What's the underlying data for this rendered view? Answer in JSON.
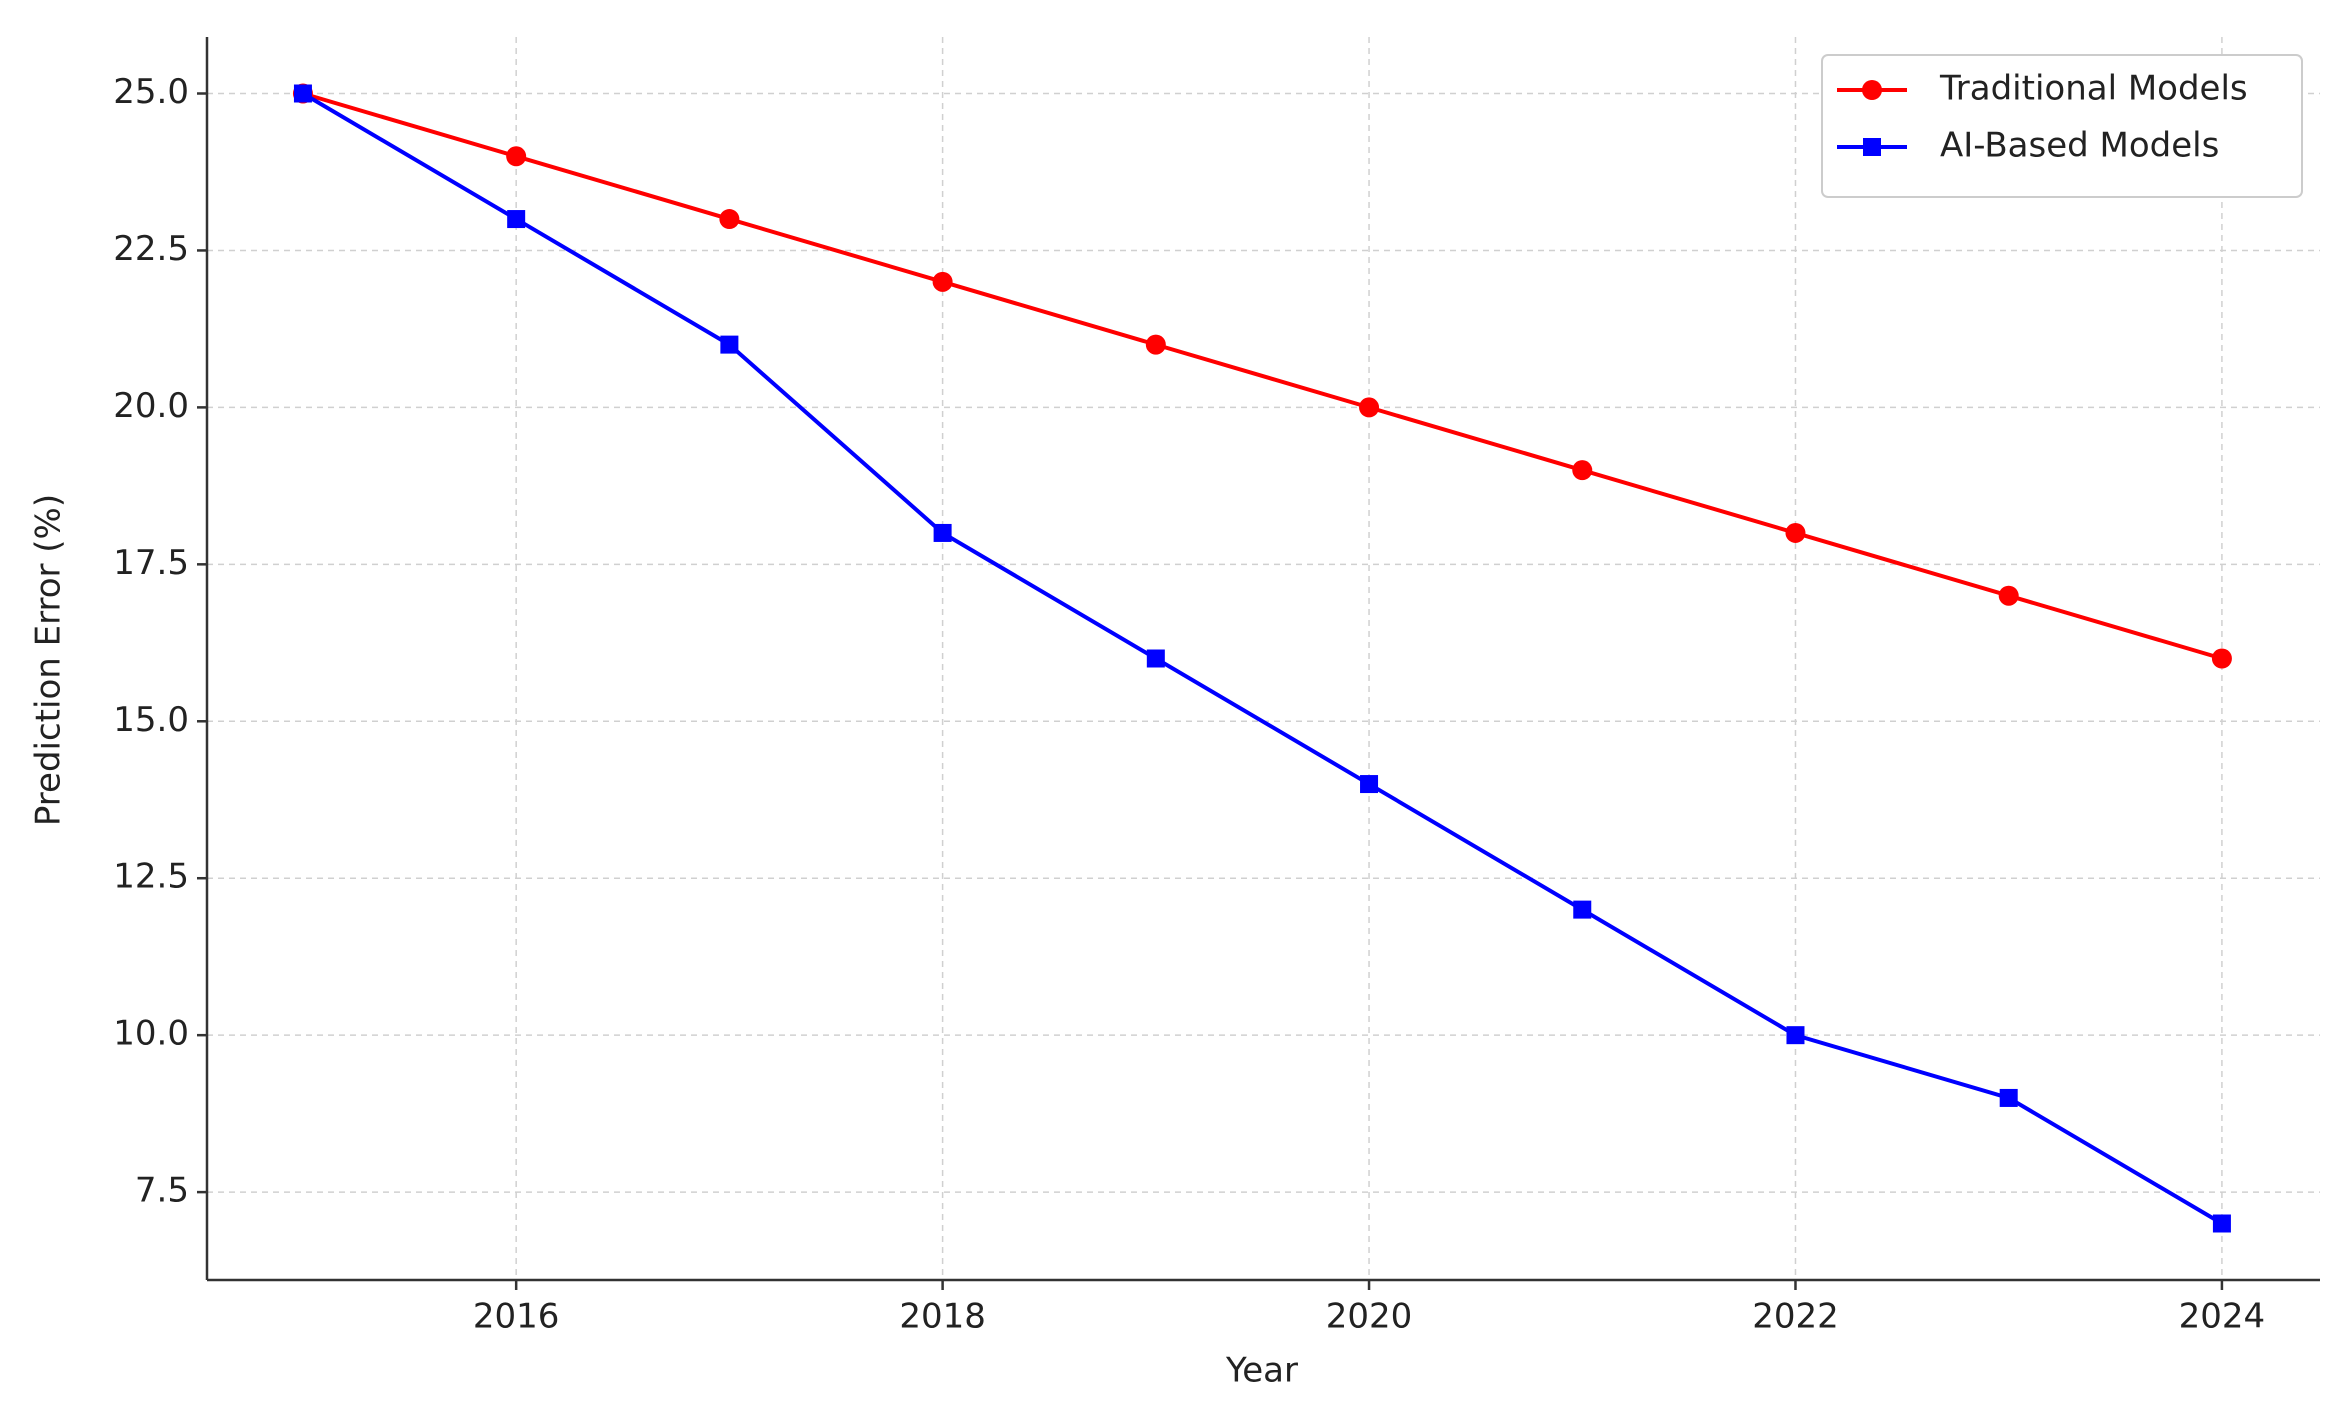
{
  "chart_data": {
    "type": "line",
    "x_label": "Year",
    "y_label": "Prediction Error (%)",
    "x": [
      2015,
      2016,
      2017,
      2018,
      2019,
      2020,
      2021,
      2022,
      2023,
      2024
    ],
    "series": [
      {
        "name": "Traditional Models",
        "color": "#ff0000",
        "marker": "circle",
        "values": [
          25,
          24,
          23,
          22,
          21,
          20,
          19,
          18,
          17,
          16
        ]
      },
      {
        "name": "AI-Based Models",
        "color": "#0000ff",
        "marker": "square",
        "values": [
          25,
          23,
          21,
          18,
          16,
          14,
          12,
          10,
          9,
          7
        ]
      }
    ],
    "xlim": [
      2014.55,
      2024.46
    ],
    "xticks": [
      2016,
      2018,
      2020,
      2022,
      2024
    ],
    "ylim": [
      6.1,
      25.9
    ],
    "yticks": [
      {
        "value": 7.5,
        "label": "7.5"
      },
      {
        "value": 10,
        "label": "10.0"
      },
      {
        "value": 12.5,
        "label": "12.5"
      },
      {
        "value": 15,
        "label": "15.0"
      },
      {
        "value": 17.5,
        "label": "17.5"
      },
      {
        "value": 20,
        "label": "20.0"
      },
      {
        "value": 22.5,
        "label": "22.5"
      },
      {
        "value": 25,
        "label": "25.0"
      }
    ],
    "grid": true,
    "legend": "upper right"
  }
}
